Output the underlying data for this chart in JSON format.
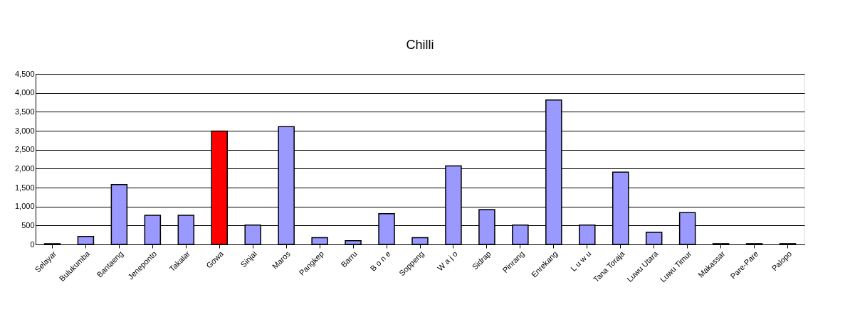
{
  "chart_data": {
    "type": "bar",
    "title": "Chilli",
    "categories": [
      "Selayar",
      "Bulukumba",
      "Bantaeng",
      "Jeneponto",
      "Takalar",
      "Gowa",
      "Sinjai",
      "Maros",
      "Pangkep",
      "Barru",
      "B o n e",
      "Soppeng",
      "W a j o",
      "Sidrap",
      "Pinrang",
      "Enrekang",
      "L u w u",
      "Tana Toraja",
      "Luwu Utara",
      "Luwu Timur",
      "Makassar",
      "Pare-Pare",
      "Palopo"
    ],
    "values": [
      20,
      210,
      1580,
      770,
      770,
      2990,
      510,
      3110,
      180,
      100,
      810,
      180,
      2070,
      920,
      510,
      3810,
      510,
      1910,
      320,
      840,
      20,
      20,
      20
    ],
    "colors": [
      "#9999ff",
      "#9999ff",
      "#9999ff",
      "#9999ff",
      "#9999ff",
      "#ff0000",
      "#9999ff",
      "#9999ff",
      "#9999ff",
      "#9999ff",
      "#9999ff",
      "#9999ff",
      "#9999ff",
      "#9999ff",
      "#9999ff",
      "#9999ff",
      "#9999ff",
      "#9999ff",
      "#9999ff",
      "#9999ff",
      "#9999ff",
      "#9999ff",
      "#9999ff"
    ],
    "ylim": [
      0,
      4500
    ],
    "yticks": [
      0,
      500,
      {
        "value": 1000,
        "label": "1,000"
      },
      {
        "value": 1500,
        "label": "1,500"
      },
      {
        "value": 2000,
        "label": "2,000"
      },
      {
        "value": 2500,
        "label": "2,500"
      },
      {
        "value": 3000,
        "label": "3,000"
      },
      {
        "value": 3500,
        "label": "3,500"
      },
      {
        "value": 4000,
        "label": "4,000"
      },
      {
        "value": 4500,
        "label": "4,500"
      }
    ],
    "grid": "y"
  }
}
